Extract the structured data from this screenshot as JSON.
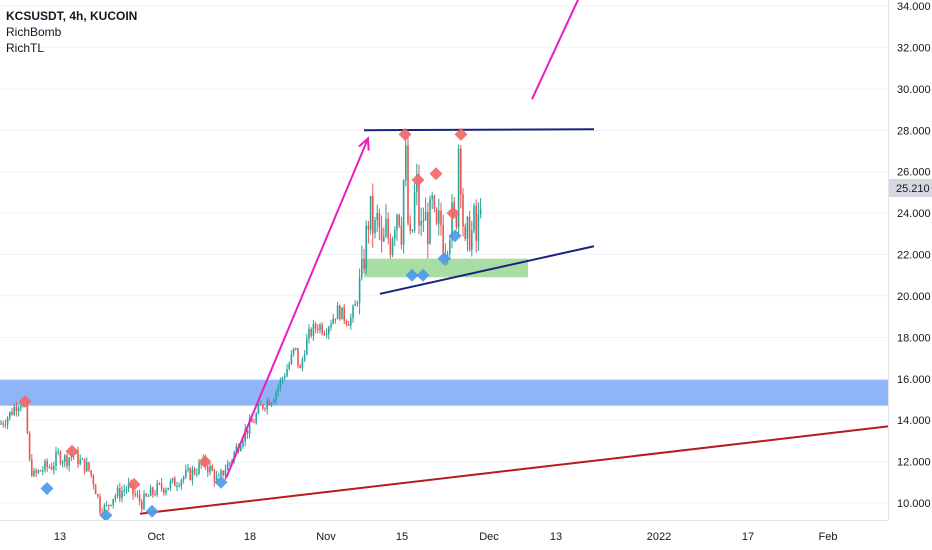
{
  "legend": {
    "title": "KCSUSDT, 4h, KUCOIN",
    "indicators": [
      "RichBomb",
      "RichTL"
    ]
  },
  "colors": {
    "up": "#26a69a",
    "down": "#ef5350",
    "sell_marker": "#f06a6a",
    "buy_marker": "#4c9be8",
    "resistance_zone": "#7da7f7",
    "support_zone": "#9ed99a",
    "trendline_navy": "#1a237e",
    "trendline_red": "#b71c1c",
    "arrow": "#e91ec0",
    "price_label_bg": "#d6d8e0",
    "axis_text": "#131722",
    "gridline": "#f0f3fa"
  },
  "chart_data": {
    "type": "candlestick",
    "symbol": "KCSUSDT",
    "timeframe": "4h",
    "exchange": "KUCOIN",
    "ylim": [
      9.5,
      34.3
    ],
    "x_ticks": [
      "13",
      "Oct",
      "18",
      "Nov",
      "15",
      "Dec",
      "13",
      "2022",
      "17",
      "Feb"
    ],
    "y_ticks": [
      "10.000",
      "12.000",
      "14.000",
      "16.000",
      "18.000",
      "20.000",
      "22.000",
      "24.000",
      "26.000",
      "28.000",
      "30.000",
      "32.000",
      "34.000"
    ],
    "y_tick_values": [
      10,
      12,
      14,
      16,
      18,
      20,
      22,
      24,
      26,
      28,
      30,
      32,
      34
    ],
    "last_price": "25.210",
    "last_price_value": 25.21,
    "close_path": [
      [
        0,
        13.8
      ],
      [
        10,
        14.3
      ],
      [
        17,
        14.8
      ],
      [
        22,
        14.9
      ],
      [
        26,
        14.5
      ],
      [
        29,
        12.0
      ],
      [
        34,
        11.3
      ],
      [
        44,
        11.7
      ],
      [
        52,
        11.8
      ],
      [
        58,
        12.3
      ],
      [
        66,
        12.1
      ],
      [
        73,
        12.4
      ],
      [
        80,
        12.0
      ],
      [
        88,
        11.7
      ],
      [
        94,
        11.0
      ],
      [
        100,
        9.8
      ],
      [
        106,
        9.7
      ],
      [
        112,
        10.3
      ],
      [
        120,
        10.5
      ],
      [
        128,
        10.8
      ],
      [
        134,
        10.4
      ],
      [
        142,
        10.0
      ],
      [
        150,
        10.4
      ],
      [
        158,
        10.7
      ],
      [
        165,
        10.8
      ],
      [
        172,
        10.9
      ],
      [
        180,
        11.2
      ],
      [
        190,
        11.4
      ],
      [
        198,
        11.7
      ],
      [
        205,
        11.9
      ],
      [
        212,
        11.5
      ],
      [
        218,
        11.0
      ],
      [
        224,
        11.6
      ],
      [
        230,
        12.0
      ],
      [
        236,
        12.6
      ],
      [
        242,
        13.2
      ],
      [
        248,
        13.6
      ],
      [
        254,
        14.0
      ],
      [
        260,
        14.6
      ],
      [
        266,
        14.9
      ],
      [
        272,
        15.1
      ],
      [
        278,
        15.6
      ],
      [
        284,
        16.2
      ],
      [
        290,
        16.8
      ],
      [
        295,
        17.5
      ],
      [
        300,
        16.3
      ],
      [
        305,
        17.6
      ],
      [
        310,
        18.2
      ],
      [
        318,
        18.6
      ],
      [
        325,
        18.4
      ],
      [
        332,
        18.9
      ],
      [
        338,
        19.3
      ],
      [
        344,
        19.0
      ],
      [
        350,
        18.8
      ],
      [
        356,
        19.6
      ],
      [
        362,
        21.0
      ],
      [
        366,
        22.8
      ],
      [
        370,
        24.2
      ],
      [
        374,
        23.0
      ],
      [
        378,
        23.8
      ],
      [
        382,
        22.0
      ],
      [
        386,
        23.2
      ],
      [
        390,
        22.5
      ],
      [
        394,
        23.6
      ],
      [
        398,
        24.4
      ],
      [
        402,
        23.0
      ],
      [
        405,
        27.8
      ],
      [
        408,
        23.5
      ],
      [
        411,
        22.0
      ],
      [
        414,
        24.6
      ],
      [
        417,
        25.4
      ],
      [
        420,
        22.8
      ],
      [
        424,
        24.0
      ],
      [
        428,
        23.2
      ],
      [
        432,
        24.4
      ],
      [
        436,
        22.8
      ],
      [
        440,
        23.8
      ],
      [
        444,
        22.4
      ],
      [
        448,
        23.0
      ],
      [
        452,
        23.8
      ],
      [
        456,
        23.4
      ],
      [
        459,
        27.9
      ],
      [
        462,
        24.4
      ],
      [
        465,
        22.0
      ],
      [
        468,
        23.2
      ],
      [
        471,
        22.8
      ],
      [
        474,
        23.6
      ],
      [
        477,
        22.3
      ],
      [
        480,
        24.8
      ],
      [
        482,
        25.21
      ]
    ],
    "sell_markers": [
      [
        25,
        14.9
      ],
      [
        72,
        12.5
      ],
      [
        134,
        10.9
      ],
      [
        205,
        12.0
      ],
      [
        405,
        27.8
      ],
      [
        418,
        25.6
      ],
      [
        436,
        25.9
      ],
      [
        453,
        24.0
      ],
      [
        461,
        27.8
      ]
    ],
    "buy_markers": [
      [
        47,
        10.7
      ],
      [
        106,
        9.4
      ],
      [
        152,
        9.6
      ],
      [
        221,
        11.0
      ],
      [
        412,
        21.0
      ],
      [
        423,
        21.0
      ],
      [
        444,
        21.8
      ],
      [
        455,
        22.9
      ]
    ],
    "zones": [
      {
        "kind": "resistance",
        "x1": 0,
        "x2": 888,
        "y_top": 15.95,
        "y_bottom": 14.7
      },
      {
        "kind": "support",
        "x1": 364,
        "x2": 528,
        "y_top": 21.8,
        "y_bottom": 20.9
      }
    ],
    "trendlines": [
      {
        "kind": "navy",
        "x1": 364,
        "y1": 28.0,
        "x2": 594,
        "y2": 28.05
      },
      {
        "kind": "navy",
        "x1": 380,
        "y1": 20.1,
        "x2": 594,
        "y2": 22.4
      },
      {
        "kind": "red",
        "x1": 140,
        "y1": 9.48,
        "x2": 888,
        "y2": 13.7
      }
    ],
    "arrows": [
      {
        "x1": 226,
        "y1": 11.2,
        "x2": 368,
        "y2": 27.6,
        "head": true
      },
      {
        "x1": 532,
        "y1": 29.5,
        "x2": 578,
        "y2": 34.3,
        "head": false
      }
    ]
  }
}
